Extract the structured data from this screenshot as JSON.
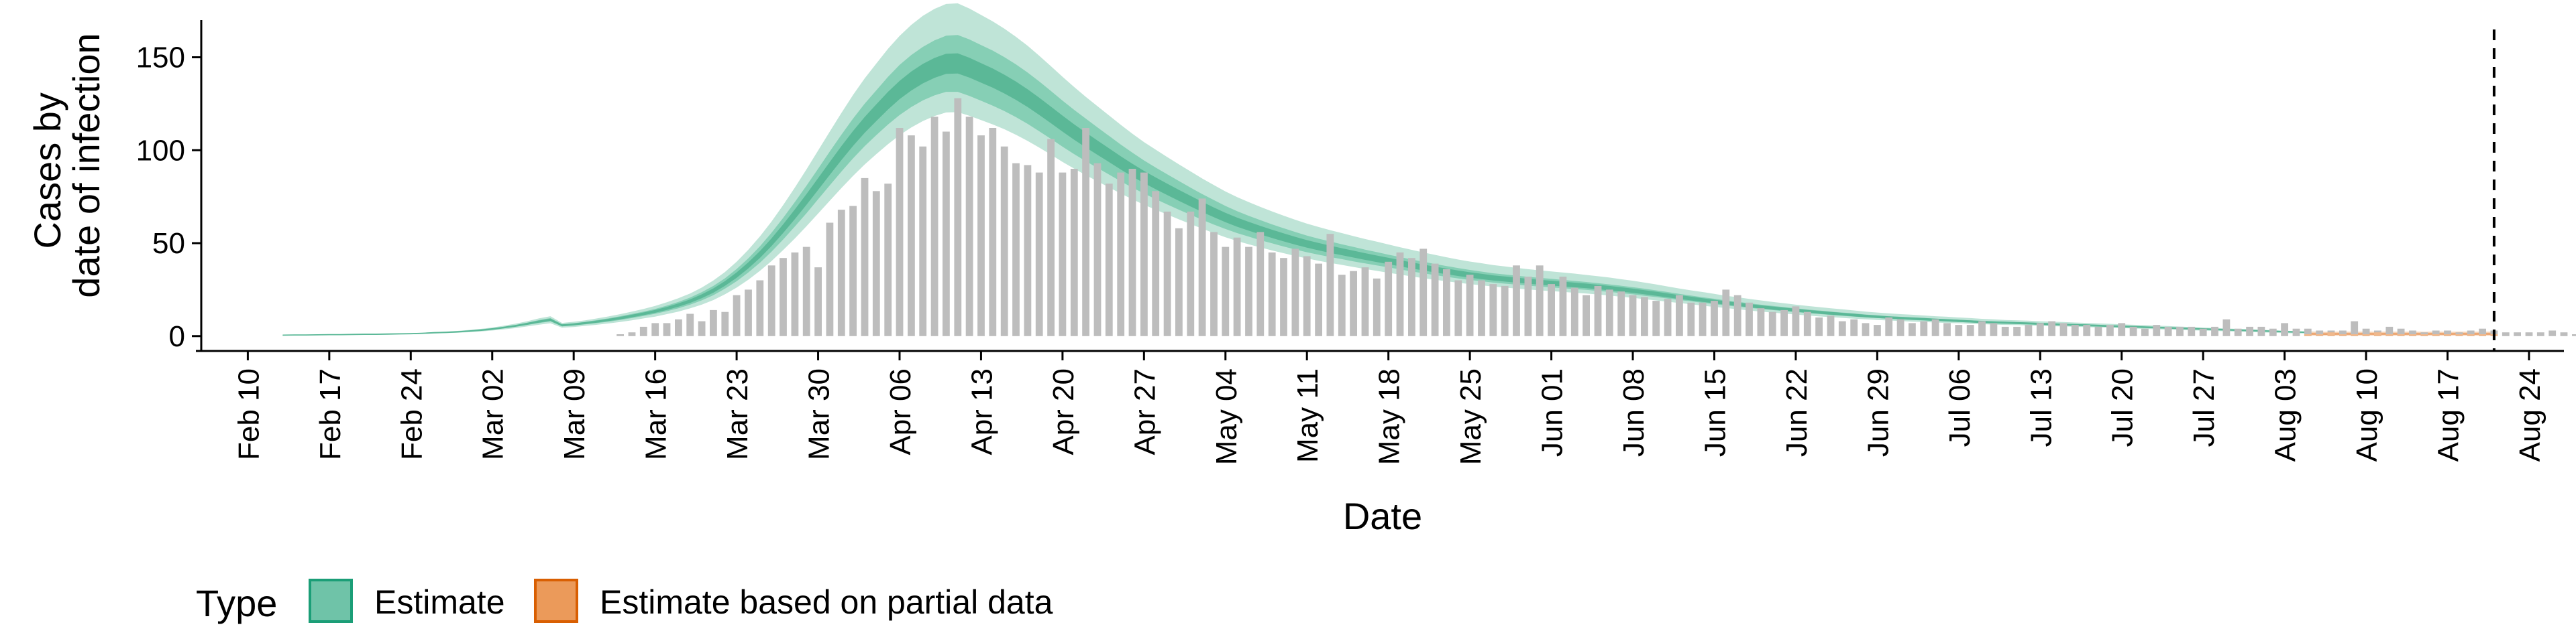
{
  "chart_data": {
    "type": "area",
    "xlabel": "Date",
    "ylabel_lines": [
      "Cases by",
      "date of infection"
    ],
    "xlim": [
      "2020-02-06",
      "2020-08-27"
    ],
    "ylim": [
      -8,
      170
    ],
    "y_ticks": [
      0,
      50,
      100,
      150
    ],
    "x_ticks": [
      {
        "date": "2020-02-10",
        "label": "Feb 10"
      },
      {
        "date": "2020-02-17",
        "label": "Feb 17"
      },
      {
        "date": "2020-02-24",
        "label": "Feb 24"
      },
      {
        "date": "2020-03-02",
        "label": "Mar 02"
      },
      {
        "date": "2020-03-09",
        "label": "Mar 09"
      },
      {
        "date": "2020-03-16",
        "label": "Mar 16"
      },
      {
        "date": "2020-03-23",
        "label": "Mar 23"
      },
      {
        "date": "2020-03-30",
        "label": "Mar 30"
      },
      {
        "date": "2020-04-06",
        "label": "Apr 06"
      },
      {
        "date": "2020-04-13",
        "label": "Apr 13"
      },
      {
        "date": "2020-04-20",
        "label": "Apr 20"
      },
      {
        "date": "2020-04-27",
        "label": "Apr 27"
      },
      {
        "date": "2020-05-04",
        "label": "May 04"
      },
      {
        "date": "2020-05-11",
        "label": "May 11"
      },
      {
        "date": "2020-05-18",
        "label": "May 18"
      },
      {
        "date": "2020-05-25",
        "label": "May 25"
      },
      {
        "date": "2020-06-01",
        "label": "Jun 01"
      },
      {
        "date": "2020-06-08",
        "label": "Jun 08"
      },
      {
        "date": "2020-06-15",
        "label": "Jun 15"
      },
      {
        "date": "2020-06-22",
        "label": "Jun 22"
      },
      {
        "date": "2020-06-29",
        "label": "Jun 29"
      },
      {
        "date": "2020-07-06",
        "label": "Jul 06"
      },
      {
        "date": "2020-07-13",
        "label": "Jul 13"
      },
      {
        "date": "2020-07-20",
        "label": "Jul 20"
      },
      {
        "date": "2020-07-27",
        "label": "Jul 27"
      },
      {
        "date": "2020-08-03",
        "label": "Aug 03"
      },
      {
        "date": "2020-08-10",
        "label": "Aug 10"
      },
      {
        "date": "2020-08-17",
        "label": "Aug 17"
      },
      {
        "date": "2020-08-24",
        "label": "Aug 24"
      }
    ],
    "vline_date": "2020-08-21",
    "grid": false,
    "legend": {
      "title": "Type",
      "position": "bottom-left",
      "entries": [
        {
          "label": "Estimate",
          "fill": "#6fc3a8",
          "stroke": "#1b9e77"
        },
        {
          "label": "Estimate based on partial data",
          "fill": "#eb9a5a",
          "stroke": "#d95f02"
        }
      ]
    },
    "colors": {
      "estimate_outer": "#bfe4d7",
      "estimate_mid": "#86cfb5",
      "estimate_inner": "#5bb897",
      "partial_outer": "#f6d2b4",
      "partial_mid": "#f0b88b",
      "partial_inner": "#e8955a",
      "bars": "#bdbdbd"
    },
    "observed_cases": {
      "start_date": "2020-03-13",
      "values": [
        1,
        2,
        5,
        7,
        7,
        9,
        12,
        8,
        14,
        13,
        22,
        25,
        30,
        38,
        42,
        45,
        48,
        37,
        61,
        68,
        70,
        85,
        78,
        82,
        112,
        108,
        102,
        118,
        110,
        128,
        118,
        108,
        112,
        102,
        93,
        92,
        88,
        106,
        88,
        90,
        112,
        93,
        82,
        88,
        90,
        88,
        78,
        67,
        58,
        67,
        74,
        56,
        48,
        53,
        48,
        56,
        45,
        42,
        47,
        43,
        39,
        55,
        33,
        35,
        37,
        31,
        40,
        45,
        42,
        47,
        39,
        36,
        30,
        33,
        30,
        28,
        27,
        38,
        32,
        38,
        28,
        32,
        26,
        22,
        27,
        25,
        24,
        22,
        21,
        19,
        20,
        22,
        18,
        18,
        19,
        25,
        22,
        18,
        15,
        13,
        14,
        16,
        13,
        10,
        11,
        8,
        9,
        7,
        6,
        10,
        9,
        7,
        8,
        9,
        7,
        6,
        6,
        8,
        7,
        5,
        5,
        6,
        7,
        8,
        7,
        6,
        6,
        5,
        6,
        7,
        5,
        4,
        6,
        5,
        5,
        5,
        4,
        5,
        9,
        4,
        5,
        5,
        4,
        7,
        4,
        4,
        3,
        3,
        3,
        8,
        4,
        3,
        5,
        4,
        3,
        2,
        3,
        3,
        2,
        3,
        4,
        3,
        2,
        2,
        2,
        2,
        3,
        2,
        1,
        2,
        4,
        2,
        2,
        1,
        2,
        2,
        3,
        2,
        1,
        2,
        1,
        3,
        1,
        1,
        1,
        1,
        1,
        1,
        2,
        1,
        2,
        1,
        1
      ]
    },
    "estimate": {
      "start_date": "2020-02-13",
      "median": [
        0.5,
        0.6,
        0.6,
        0.7,
        0.8,
        0.8,
        0.9,
        1,
        1,
        1.1,
        1.2,
        1.3,
        1.5,
        1.8,
        2,
        2.3,
        2.7,
        3.2,
        3.8,
        4.6,
        5.5,
        6.6,
        7.8,
        8.8,
        5.8,
        6.3,
        7,
        7.8,
        8.7,
        9.7,
        10.8,
        12,
        13.3,
        14.9,
        16.7,
        18.8,
        21.4,
        24.5,
        28.3,
        32.8,
        38,
        43.9,
        50.5,
        57.8,
        65.5,
        73.5,
        81.8,
        90.2,
        98.4,
        106.3,
        113.6,
        120.2,
        126.6,
        132.4,
        137.2,
        141.2,
        144.3,
        146.5,
        146.7,
        144.4,
        141.6,
        138.8,
        135.6,
        132,
        128,
        123.6,
        119,
        114.3,
        109.8,
        105.5,
        101.4,
        97.3,
        93.2,
        89.3,
        85.6,
        82.2,
        78.9,
        75.7,
        72.6,
        69.5,
        66.6,
        63.8,
        61.3,
        59.1,
        57,
        55,
        53.1,
        51.3,
        49.6,
        48.1,
        46.7,
        45.4,
        44.1,
        42.8,
        41.6,
        40.4,
        39.2,
        38,
        36.9,
        35.8,
        34.8,
        33.8,
        32.9,
        32.1,
        31.3,
        30.7,
        30.1,
        29.5,
        29,
        28.5,
        28,
        27.5,
        27,
        26.4,
        25.8,
        25.1,
        24.4,
        23.6,
        22.8,
        21.9,
        21,
        20.2,
        19.4,
        18.6,
        17.8,
        17.1,
        16.4,
        15.7,
        15.1,
        14.5,
        13.9,
        13.3,
        12.8,
        12.3,
        11.8,
        11.3,
        10.8,
        10.4,
        10,
        9.7,
        9.4,
        9.1,
        8.8,
        8.5,
        8.2,
        7.9,
        7.6,
        7.4,
        7.2,
        7,
        6.8,
        6.6,
        6.4,
        6.2,
        6,
        5.8,
        5.6,
        5.4,
        5.2,
        5,
        4.8,
        4.6,
        4.4,
        4.2,
        4,
        3.8,
        3.6,
        3.4,
        3.2,
        3,
        2.8,
        2.6,
        2.4,
        2.2,
        2,
        1.9,
        1.8,
        1.7,
        1.6,
        1.5,
        1.4,
        1.3,
        1.2,
        1.1,
        1,
        0.9
      ],
      "lower_50": [
        0.4,
        0.5,
        0.5,
        0.6,
        0.7,
        0.7,
        0.8,
        0.9,
        0.9,
        1,
        1.1,
        1.2,
        1.3,
        1.6,
        1.8,
        2.1,
        2.4,
        2.9,
        3.5,
        4.2,
        5,
        6,
        7,
        7.9,
        5.2,
        5.7,
        6.3,
        7,
        7.8,
        8.7,
        9.7,
        10.8,
        12,
        13.4,
        15,
        16.9,
        19.2,
        22,
        25.5,
        29.5,
        34.2,
        39.5,
        45.4,
        52,
        58.9,
        66.1,
        73.6,
        81.1,
        88.5,
        95.6,
        102.2,
        108.1,
        113.8,
        118.9,
        123.2,
        126.8,
        129.5,
        131.4,
        131.4,
        129.2,
        126.6,
        124,
        121.1,
        117.8,
        114.2,
        110.2,
        106.1,
        101.9,
        97.9,
        94.1,
        90.5,
        86.9,
        83.3,
        79.9,
        76.7,
        73.7,
        70.8,
        68,
        65.3,
        62.6,
        60,
        57.6,
        55.4,
        53.5,
        51.6,
        49.9,
        48.2,
        46.6,
        45.1,
        43.8,
        42.5,
        41.4,
        40.2,
        39.1,
        38,
        37,
        35.9,
        34.8,
        33.8,
        32.8,
        31.9,
        31,
        30.2,
        29.5,
        28.8,
        28.2,
        27.7,
        27.1,
        26.7,
        26.2,
        25.8,
        25.3,
        24.9,
        24.3,
        23.8,
        23.1,
        22.5,
        21.7,
        21,
        20.2,
        19.4,
        18.7,
        17.9,
        17.2,
        16.5,
        15.8,
        15.2,
        14.6,
        14,
        13.4,
        12.9,
        12.4,
        11.9,
        11.4,
        10.9,
        10.5,
        10.1,
        9.7,
        9.3,
        9,
        8.7,
        8.4,
        8.1,
        7.9,
        7.6,
        7.3,
        7,
        6.8,
        6.6,
        6.5,
        6.3,
        6.1,
        5.9,
        5.7,
        5.6,
        5.4,
        5.2,
        5,
        4.8,
        4.6,
        4.4,
        4.2,
        4.1,
        3.9,
        3.7,
        3.5,
        3.3,
        3.1,
        2.9,
        2.8,
        2.6,
        2.4,
        2.2,
        2,
        1.8,
        1.7,
        1.6,
        1.5,
        1.4,
        1.3,
        1.2,
        1.1,
        1,
        0.9,
        0.8
      ],
      "upper_50": [
        0.6,
        0.7,
        0.7,
        0.8,
        0.9,
        0.9,
        1,
        1.1,
        1.1,
        1.2,
        1.3,
        1.4,
        1.7,
        2,
        2.2,
        2.5,
        3,
        3.5,
        4.1,
        5,
        6,
        7.2,
        8.6,
        9.7,
        6.4,
        6.9,
        7.7,
        8.6,
        9.6,
        10.7,
        11.9,
        13.2,
        14.6,
        16.4,
        18.4,
        20.7,
        23.6,
        27,
        31.1,
        36.1,
        41.8,
        48.3,
        55.6,
        63.6,
        72.1,
        80.9,
        90,
        99.3,
        108.3,
        117,
        125,
        132.2,
        139.4,
        145.9,
        151.2,
        155.6,
        159.1,
        161.6,
        162,
        159.6,
        156.6,
        153.6,
        150.1,
        146.2,
        141.8,
        137,
        131.9,
        126.7,
        121.7,
        117,
        112.3,
        107.7,
        103.1,
        98.7,
        94.5,
        90.7,
        87,
        83.4,
        79.9,
        76.4,
        73.2,
        70,
        67.2,
        64.7,
        62.4,
        60.1,
        58,
        56,
        54.1,
        52.4,
        50.9,
        49.4,
        48,
        46.5,
        45.2,
        43.8,
        42.5,
        41.2,
        40,
        38.8,
        37.7,
        36.6,
        35.6,
        34.7,
        33.8,
        33.2,
        32.5,
        31.9,
        31.3,
        30.8,
        30.2,
        29.7,
        29.1,
        28.5,
        27.8,
        27.1,
        26.3,
        25.5,
        24.6,
        23.7,
        22.7,
        21.8,
        20.9,
        20.1,
        19.2,
        18.5,
        17.7,
        16.9,
        16.3,
        15.6,
        15,
        14.3,
        13.8,
        13.2,
        12.7,
        12.2,
        11.6,
        11.2,
        10.7,
        10.4,
        10.1,
        9.8,
        9.4,
        9.1,
        8.8,
        8.5,
        8.2,
        7.9,
        7.7,
        7.5,
        7.3,
        7.1,
        6.9,
        6.7,
        6.5,
        6.3,
        6,
        5.8,
        5.6,
        5.4,
        5.2,
        5,
        4.7,
        4.5,
        4.3,
        4.1,
        3.9,
        3.7,
        3.5,
        3.3,
        3,
        2.8,
        2.6,
        2.4,
        2.2,
        2.1,
        2,
        1.8,
        1.7,
        1.6,
        1.5,
        1.4,
        1.3,
        1.2,
        1.1,
        1
      ],
      "lower_90": [
        0.3,
        0.4,
        0.4,
        0.5,
        0.6,
        0.6,
        0.7,
        0.8,
        0.8,
        0.9,
        1,
        1.1,
        1.2,
        1.4,
        1.6,
        1.8,
        2.1,
        2.5,
        3,
        3.6,
        4.3,
        5.2,
        6.1,
        6.9,
        4.5,
        4.9,
        5.5,
        6.1,
        6.8,
        7.6,
        8.5,
        9.5,
        10.5,
        11.8,
        13.2,
        14.9,
        16.9,
        19.4,
        22.5,
        26.1,
        30.3,
        35.1,
        40.4,
        46.3,
        52.5,
        59.1,
        65.9,
        72.8,
        79.6,
        86.2,
        92.3,
        97.9,
        103.2,
        108.1,
        112.2,
        115.7,
        118.4,
        120.3,
        120.5,
        118.5,
        116.2,
        113.9,
        111.3,
        108.3,
        105,
        101.4,
        97.6,
        93.7,
        90.1,
        86.6,
        83.3,
        80,
        76.7,
        73.6,
        70.7,
        68,
        65.4,
        62.8,
        60.3,
        57.8,
        55.4,
        53.2,
        51.2,
        49.4,
        47.7,
        46.1,
        44.6,
        43.1,
        41.8,
        40.5,
        39.4,
        38.3,
        37.2,
        36.1,
        35.1,
        34.1,
        33.1,
        32.1,
        31.2,
        30.3,
        29.5,
        28.7,
        28,
        27.3,
        26.7,
        26.1,
        25.6,
        25.1,
        24.6,
        24.2,
        23.8,
        23.3,
        22.9,
        22.4,
        21.8,
        21.2,
        20.6,
        19.9,
        19.2,
        18.5,
        17.8,
        17.1,
        16.4,
        15.7,
        15.1,
        14.4,
        13.8,
        13.2,
        12.7,
        12.1,
        11.6,
        11.1,
        10.6,
        10.2,
        9.8,
        9.4,
        9,
        8.7,
        8.4,
        8.1,
        7.8,
        7.6,
        7.3,
        7.1,
        6.9,
        6.6,
        6.4,
        6.2,
        6,
        5.9,
        5.7,
        5.5,
        5.3,
        5.2,
        5,
        4.8,
        4.7,
        4.5,
        4.3,
        4.1,
        3.9,
        3.7,
        3.5,
        3.3,
        3.1,
        3,
        2.8,
        2.6,
        2.4,
        2.2,
        2,
        1.8,
        1.6,
        1.5,
        1.4,
        1.3,
        1.2,
        1.1,
        1,
        0.9,
        0.8,
        0.7
      ],
      "upper_90": [
        0.7,
        0.8,
        0.8,
        0.9,
        1,
        1,
        1.1,
        1.2,
        1.2,
        1.3,
        1.4,
        1.5,
        1.8,
        2.2,
        2.4,
        2.8,
        3.3,
        3.9,
        4.6,
        5.6,
        6.7,
        8,
        9.5,
        10.7,
        7.1,
        7.7,
        8.5,
        9.5,
        10.6,
        11.8,
        13.2,
        14.6,
        16.2,
        18.2,
        20.4,
        22.9,
        26.1,
        29.9,
        34.5,
        40,
        46.4,
        53.6,
        61.6,
        70.5,
        79.9,
        89.7,
        99.8,
        110,
        120,
        129.7,
        138.6,
        146.6,
        154.5,
        161.5,
        167.4,
        172.3,
        176,
        178.7,
        179,
        176.2,
        172.8,
        169.3,
        165.4,
        161,
        156.2,
        150.8,
        145.2,
        139.5,
        134,
        128.7,
        123.7,
        118.7,
        113.7,
        108.9,
        104.4,
        100.3,
        96.3,
        92.4,
        88.6,
        84.8,
        81.3,
        77.8,
        74.8,
        72.1,
        69.5,
        67.1,
        64.8,
        62.6,
        60.5,
        58.7,
        57,
        55.4,
        53.8,
        52.2,
        50.8,
        49.3,
        47.8,
        46.4,
        45,
        43.7,
        42.4,
        41.2,
        40.1,
        39.2,
        38.2,
        37.5,
        36.7,
        36,
        35.4,
        34.8,
        34.2,
        33.6,
        32.9,
        32.2,
        31.5,
        30.6,
        29.8,
        28.8,
        27.8,
        26.7,
        25.6,
        24.6,
        23.7,
        22.7,
        21.7,
        20.9,
        20,
        19.2,
        18.4,
        17.7,
        16.9,
        16.2,
        15.6,
        15,
        14.4,
        13.8,
        13.2,
        12.7,
        12.2,
        11.8,
        11.5,
        11.1,
        10.7,
        10.4,
        10,
        9.7,
        9.3,
        9,
        8.7,
        8.5,
        8.3,
        8,
        7.8,
        7.6,
        7.3,
        7.1,
        6.8,
        6.6,
        6.3,
        6.1,
        5.9,
        5.6,
        5.4,
        5.1,
        4.9,
        4.6,
        4.4,
        4.1,
        3.9,
        3.7,
        3.4,
        3.2,
        2.9,
        2.7,
        2.4,
        2.3,
        2.2,
        2,
        1.9,
        1.8,
        1.7,
        1.6,
        1.5,
        1.3,
        1.2,
        1.1
      ]
    },
    "partial_estimate": {
      "start_date": "2020-08-05",
      "median": [
        1.2,
        1.1,
        1.1,
        1.2,
        1.1,
        1.2,
        1.1,
        1.2,
        1.1,
        1.2,
        1.1,
        1.2,
        1.1,
        1.2,
        1.1,
        1.2,
        1.1
      ],
      "lower_50": [
        0.7,
        0.7,
        0.7,
        0.7,
        0.7,
        0.7,
        0.7,
        0.7,
        0.7,
        0.7,
        0.7,
        0.7,
        0.7,
        0.7,
        0.7,
        0.7,
        0.7
      ],
      "upper_50": [
        1.7,
        1.6,
        1.6,
        1.7,
        1.6,
        1.7,
        1.6,
        1.7,
        1.6,
        1.7,
        1.6,
        1.7,
        1.6,
        1.7,
        1.6,
        1.7,
        1.6
      ],
      "lower_90": [
        0.3,
        0.3,
        0.3,
        0.3,
        0.3,
        0.3,
        0.3,
        0.3,
        0.3,
        0.3,
        0.3,
        0.3,
        0.3,
        0.3,
        0.3,
        0.3,
        0.3
      ],
      "upper_90": [
        2.4,
        2.3,
        2.3,
        2.4,
        2.3,
        2.4,
        2.3,
        2.4,
        2.3,
        2.4,
        2.3,
        2.4,
        2.3,
        2.4,
        2.3,
        2.4,
        2.3
      ]
    },
    "partial_observed": {
      "start_date": "2020-08-05",
      "values": [
        1,
        1,
        2,
        1,
        1,
        1,
        2,
        1,
        1,
        1,
        1,
        1,
        1,
        1,
        1,
        1,
        1
      ]
    }
  }
}
